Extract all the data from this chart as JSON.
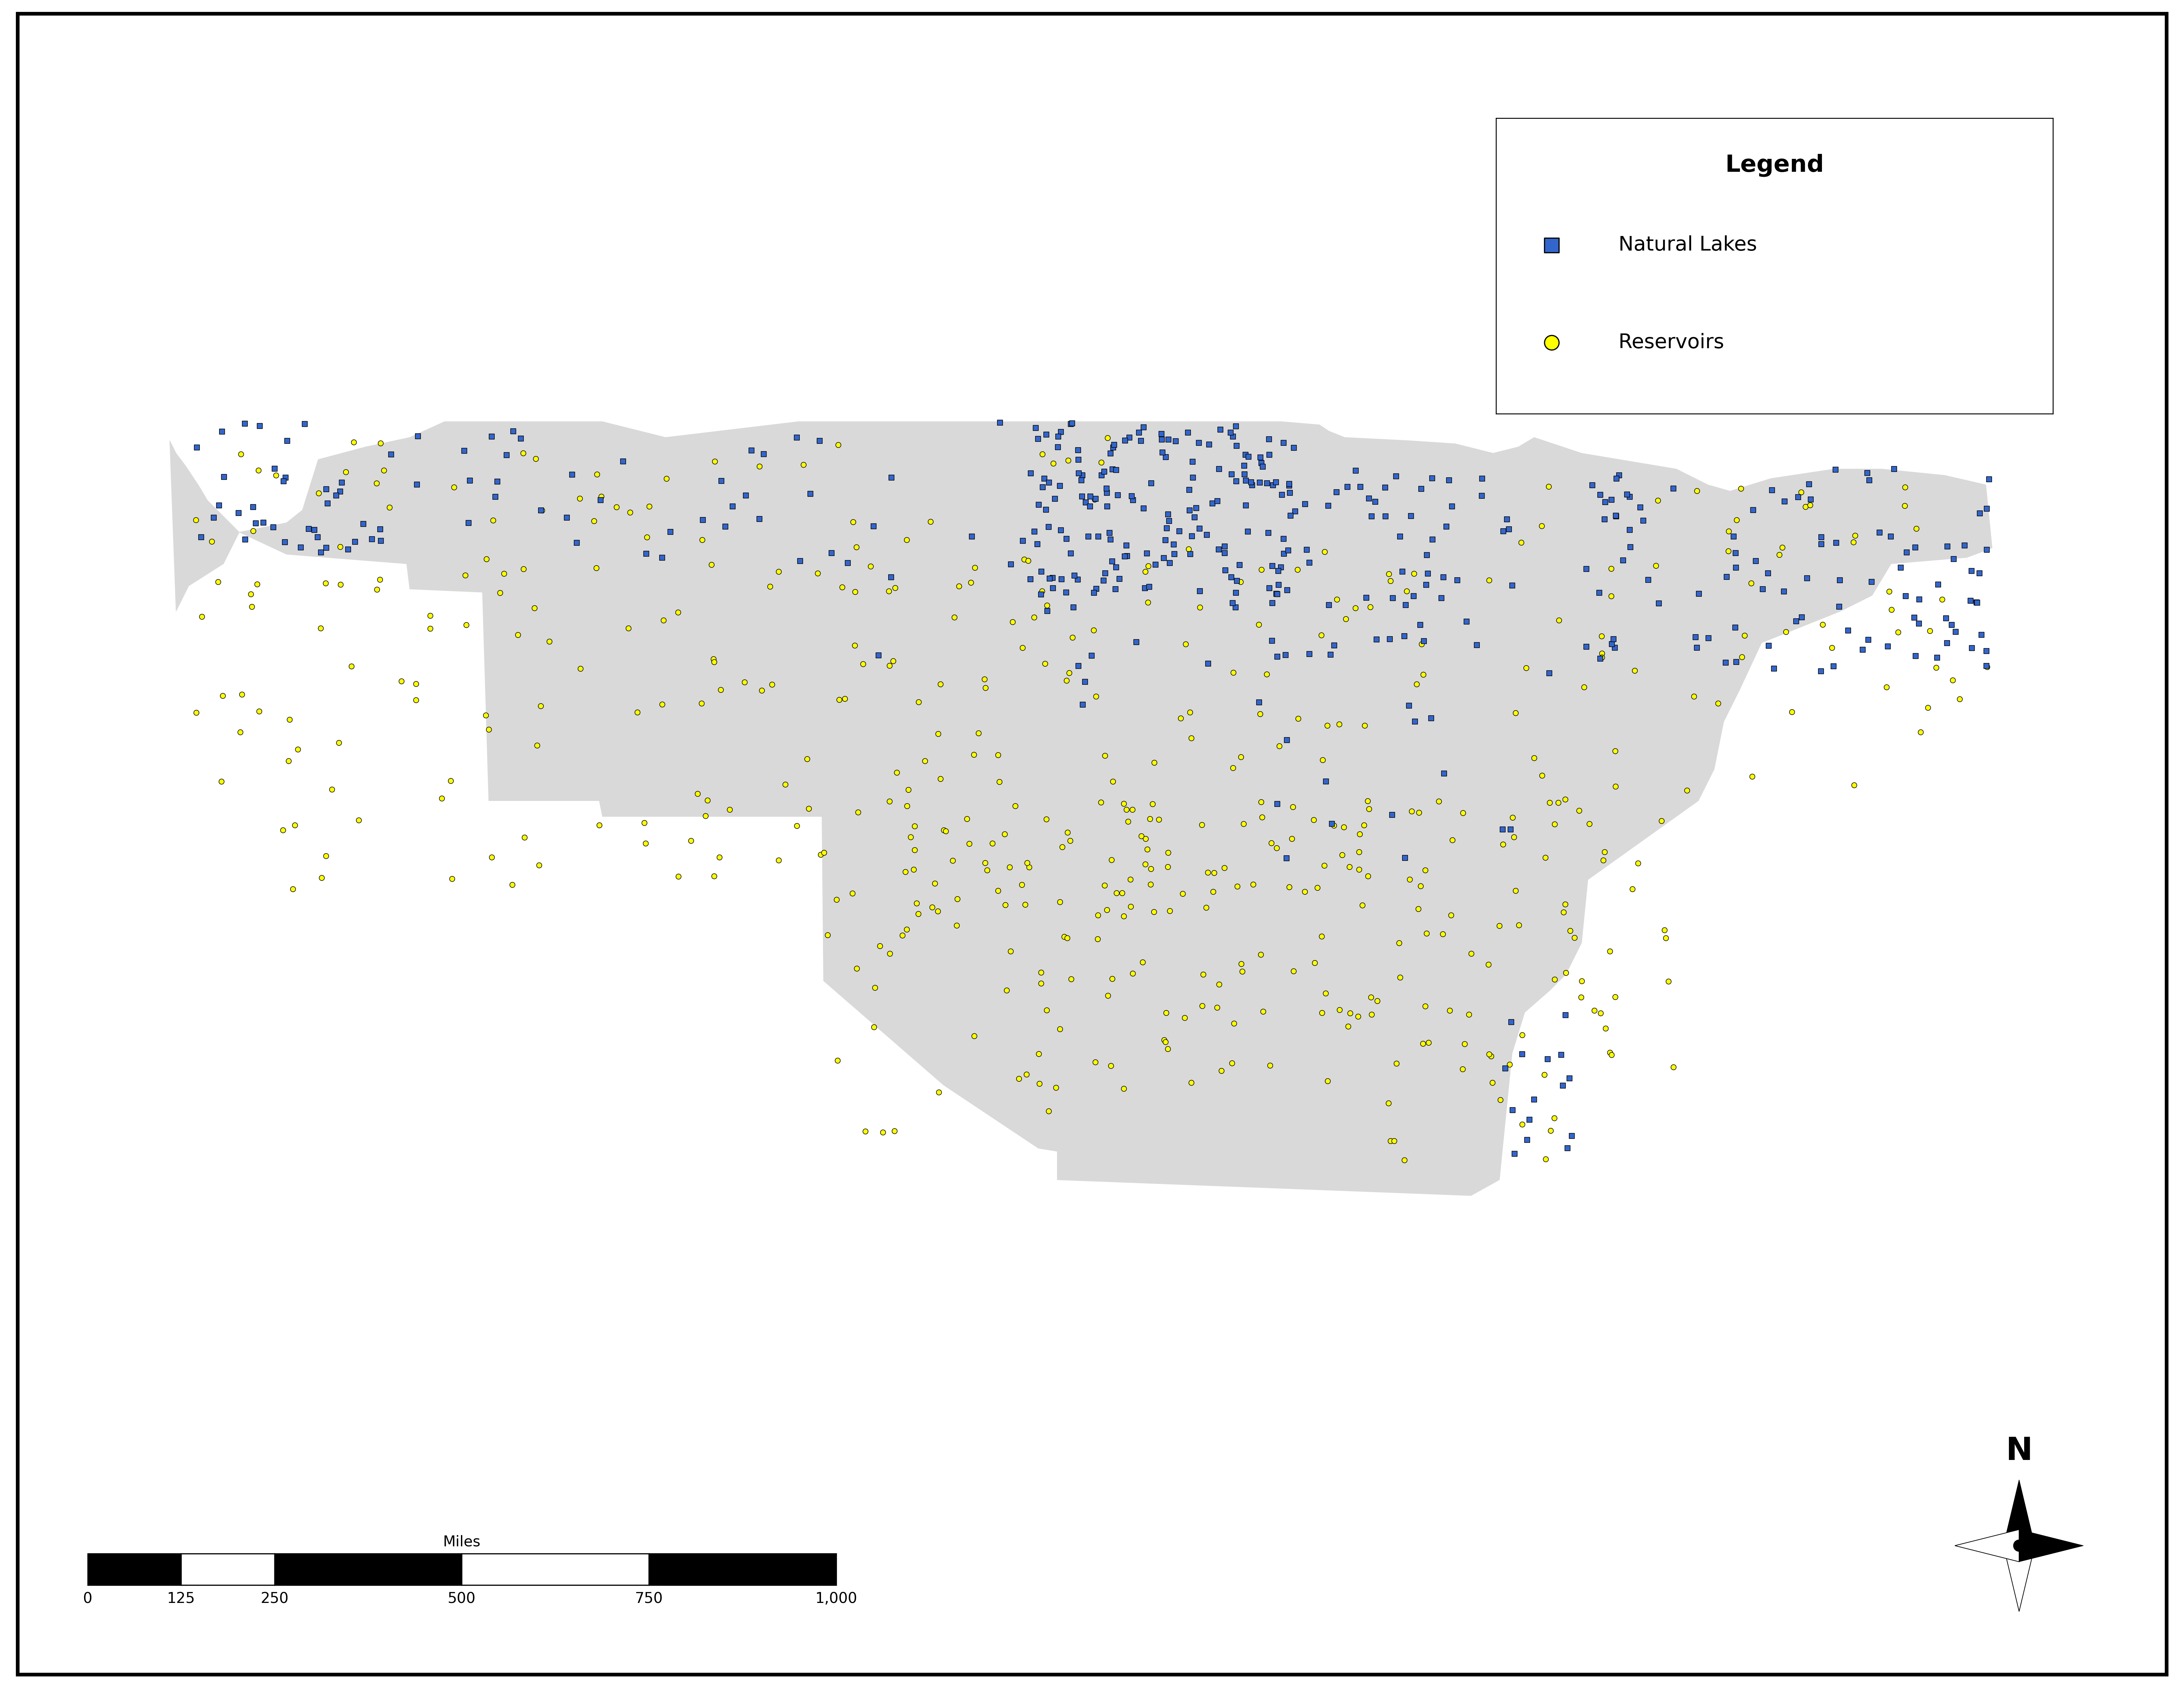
{
  "background_color": "#ffffff",
  "map_fill_color": "#d9d9d9",
  "map_edge_color": "#aaaaaa",
  "natural_lakes_color": "#3366cc",
  "natural_lakes_edge": "#000000",
  "reservoirs_color": "#ffff00",
  "reservoirs_edge": "#000000",
  "marker_size_lakes": 120,
  "marker_size_reservoirs": 130,
  "legend_title": "Legend",
  "legend_label_lakes": "Natural Lakes",
  "legend_label_reservoirs": "Reservoirs",
  "scale_bar_label": "Miles",
  "scale_ticks": [
    "0",
    "125",
    "250",
    "500",
    "750",
    "1,000"
  ],
  "scale_values_miles": [
    0,
    125,
    250,
    500,
    750,
    1000
  ],
  "xlim": [
    -128,
    -63
  ],
  "ylim": [
    23.5,
    51.5
  ],
  "seed_lakes": 42,
  "seed_reservoirs": 99
}
